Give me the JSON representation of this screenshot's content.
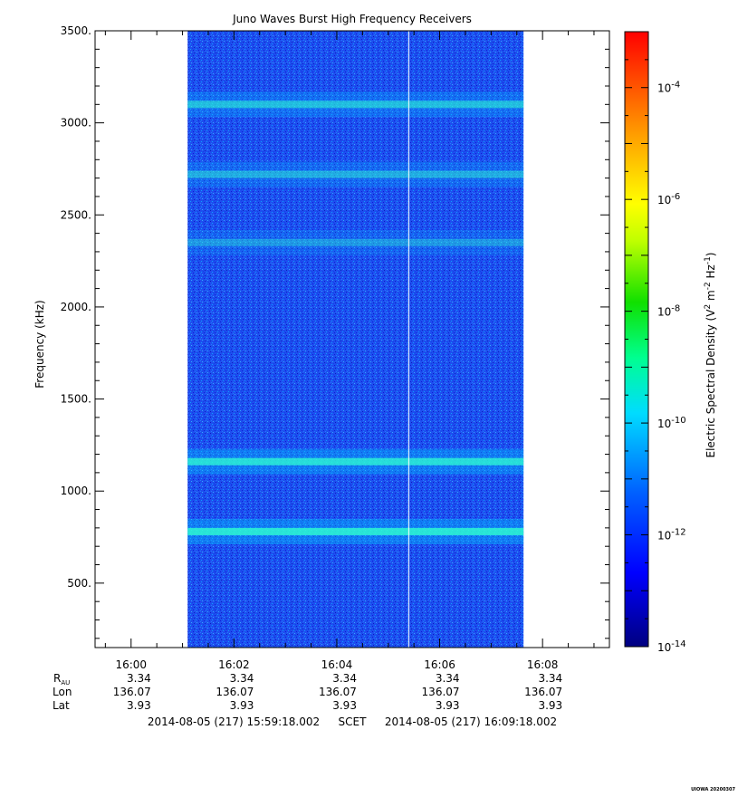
{
  "chart_data": {
    "type": "heatmap",
    "title": "Juno Waves Burst High Frequency Receivers",
    "ylabel": "Frequency (kHz)",
    "ylim": [
      150,
      3500
    ],
    "y_ticks": [
      "500.",
      "1000.",
      "1500.",
      "2000.",
      "2500.",
      "3000.",
      "3500."
    ],
    "y_tick_values": [
      500,
      1000,
      1500,
      2000,
      2500,
      3000,
      3500
    ],
    "x_ticks": [
      "16:00",
      "16:02",
      "16:04",
      "16:06",
      "16:08"
    ],
    "x_tick_minutes": [
      0.7,
      2.7,
      4.7,
      6.7,
      8.7
    ],
    "xlim_minutes": [
      0,
      10
    ],
    "data_span_minutes": [
      1.8,
      8.33
    ],
    "gap_line_minute": 6.1,
    "emission_bands_khz": [
      {
        "center": 3100,
        "strength": 0.55
      },
      {
        "center": 2720,
        "strength": 0.45
      },
      {
        "center": 2350,
        "strength": 0.35
      },
      {
        "center": 1160,
        "strength": 0.75
      },
      {
        "center": 780,
        "strength": 0.8
      }
    ],
    "colorbar": {
      "label": "Electric Spectral Density (V",
      "label_parts": [
        "Electric Spectral Density (V",
        "2",
        " m",
        "-2",
        " Hz",
        "-1",
        ")"
      ],
      "range_exponents": [
        -14,
        -3
      ],
      "tick_base": "10",
      "tick_exponents": [
        "-4",
        "-6",
        "-8",
        "-10",
        "-12",
        "-14"
      ],
      "tick_exponent_values": [
        -4,
        -6,
        -8,
        -10,
        -12,
        -14
      ]
    },
    "ephemeris": {
      "row_labels": {
        "r": "R",
        "r_sub": "AU",
        "lon": "Lon",
        "lat": "Lat"
      },
      "r_values": [
        "3.34",
        "3.34",
        "3.34",
        "3.34",
        "3.34"
      ],
      "lon_values": [
        "136.07",
        "136.07",
        "136.07",
        "136.07",
        "136.07"
      ],
      "lat_values": [
        "3.93",
        "3.93",
        "3.93",
        "3.93",
        "3.93"
      ]
    },
    "time_range": {
      "start": "2014-08-05 (217) 15:59:18.002",
      "label": "SCET",
      "end": "2014-08-05 (217) 16:09:18.002"
    },
    "credit": "UIOWA 20200307"
  }
}
